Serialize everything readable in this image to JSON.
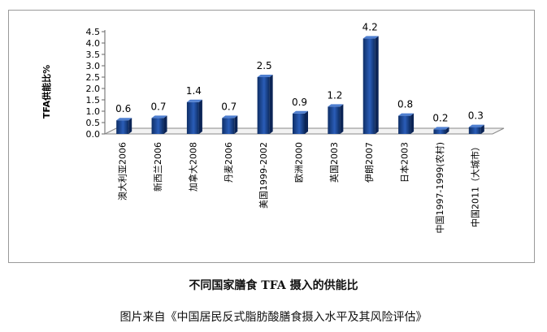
{
  "chart_data": {
    "type": "bar",
    "title": "不同国家膳食 TFA 摄入的供能比",
    "ylabel": "TFA供能比%",
    "xlabel": "",
    "ylim": [
      0,
      4.5
    ],
    "yticks": [
      "0.0",
      "0.5",
      "1.0",
      "1.5",
      "2.0",
      "2.5",
      "3.0",
      "3.5",
      "4.0",
      "4.5"
    ],
    "categories": [
      "澳大利亚2006",
      "新西兰2006",
      "加拿大2008",
      "丹麦2006",
      "美国1999-2002",
      "欧洲2000",
      "英国2003",
      "伊朗2007",
      "日本2003",
      "中国1997-1999(农村)",
      "中国2011（大城市）"
    ],
    "values": [
      0.6,
      0.7,
      1.4,
      0.7,
      2.5,
      0.9,
      1.2,
      4.2,
      0.8,
      0.2,
      0.3
    ],
    "data_labels": [
      "0.6",
      "0.7",
      "1.4",
      "0.7",
      "2.5",
      "0.9",
      "1.2",
      "4.2",
      "0.8",
      "0.2",
      "0.3"
    ],
    "grid": false,
    "legend": "none",
    "bar_color": "#1f4e9c"
  },
  "source_note": "图片来自《中国居民反式脂肪酸膳食摄入水平及其风险评估》"
}
